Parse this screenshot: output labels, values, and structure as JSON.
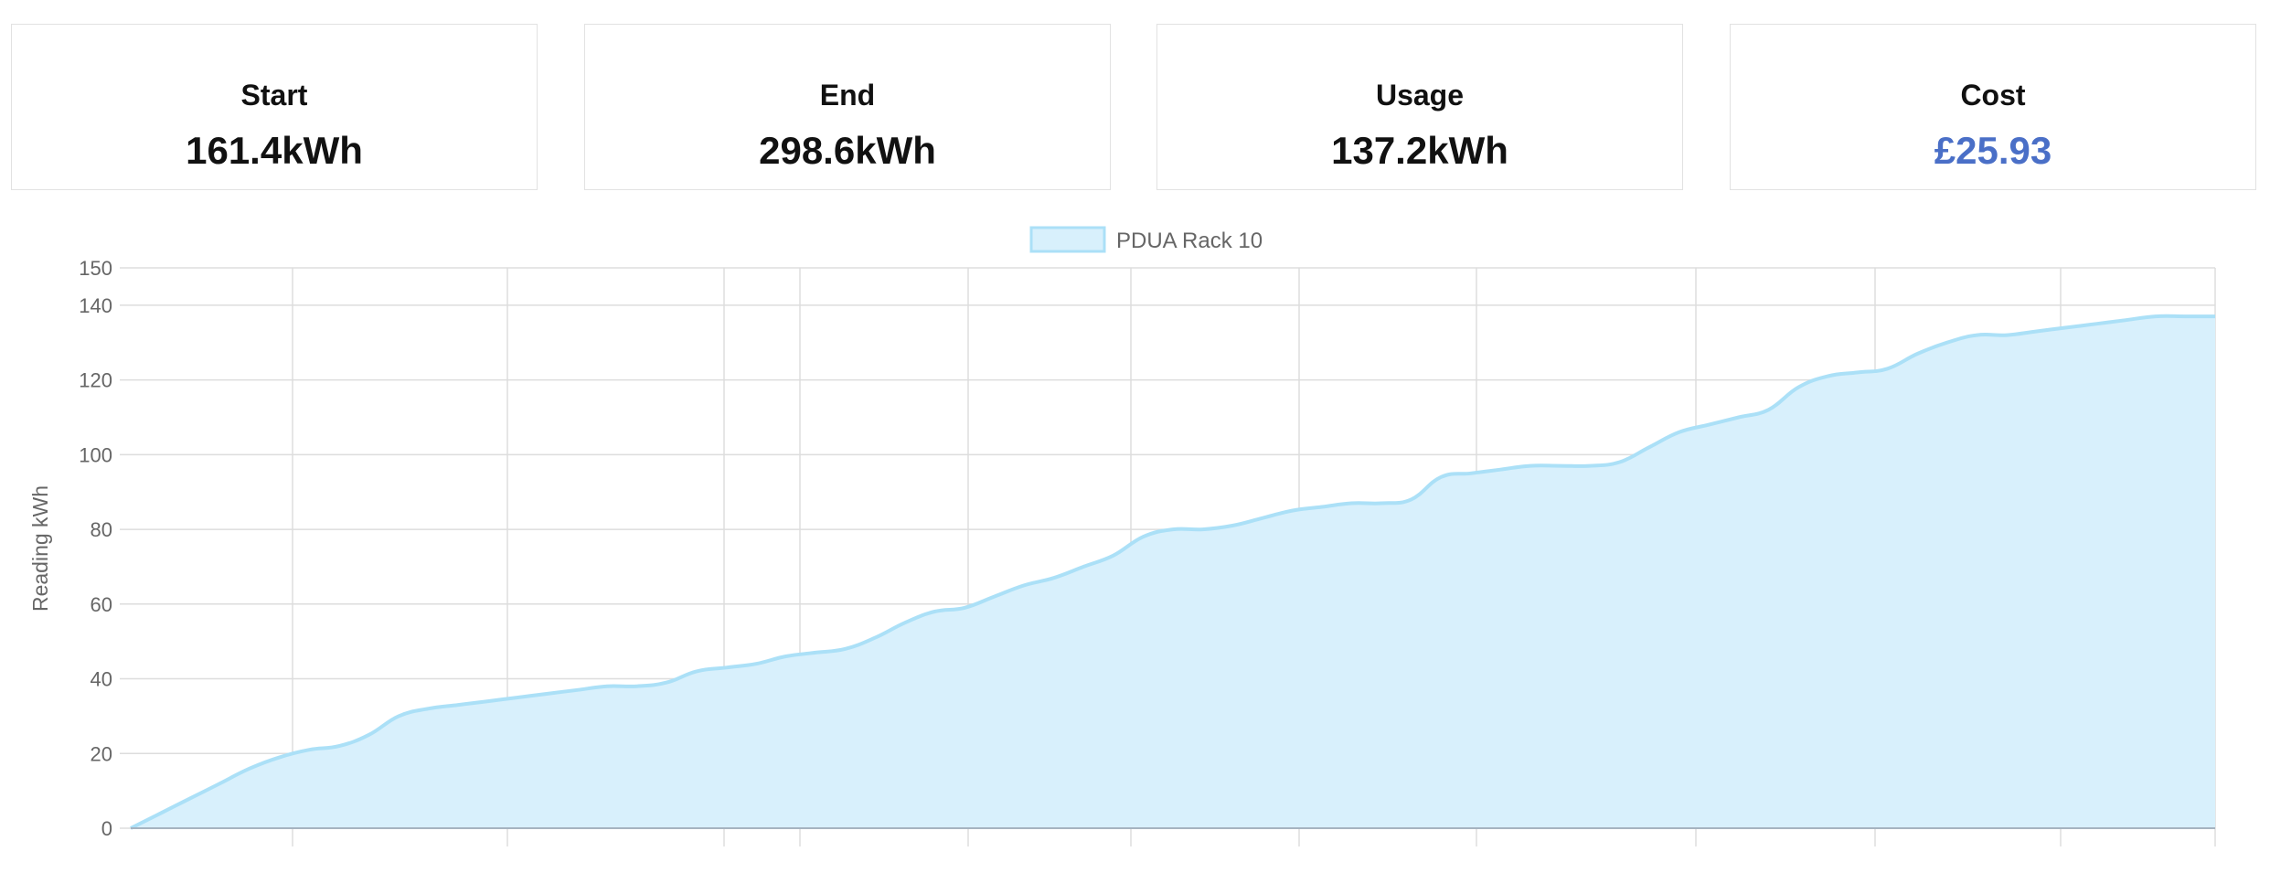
{
  "cards": [
    {
      "title": "Start",
      "value": "161.4kWh",
      "accent": false
    },
    {
      "title": "End",
      "value": "298.6kWh",
      "accent": false
    },
    {
      "title": "Usage",
      "value": "137.2kWh",
      "accent": false
    },
    {
      "title": "Cost",
      "value": "£25.93",
      "accent": true
    }
  ],
  "colors": {
    "area_fill": "#d8f0fc",
    "area_line": "#abe0f7",
    "accent": "#4a6fc7",
    "grid": "#dddddd"
  },
  "chart_data": {
    "type": "area",
    "title": "",
    "xlabel": "",
    "ylabel": "Reading kWh",
    "ylim": [
      0,
      150
    ],
    "yticks": [
      0,
      20,
      40,
      60,
      80,
      100,
      120,
      140,
      150
    ],
    "grid": true,
    "legend_position": "top-center",
    "series": [
      {
        "name": "PDUA Rack 10",
        "x": [
          0,
          1,
          2,
          3,
          4,
          5,
          6,
          7,
          8,
          9,
          10,
          11,
          12,
          13,
          14,
          15,
          16,
          17,
          18,
          19,
          20,
          21,
          22,
          23,
          24,
          25,
          26,
          27,
          28,
          29,
          30,
          31,
          32,
          33,
          34,
          35,
          36,
          37,
          38,
          39,
          40,
          41,
          42,
          43,
          44,
          45,
          46,
          47,
          48,
          49,
          50,
          51,
          52,
          53,
          54,
          55,
          56,
          57,
          58,
          59,
          60,
          61,
          62,
          63,
          64,
          65,
          66,
          67,
          68,
          69,
          70
        ],
        "values": [
          0,
          4,
          8,
          12,
          16,
          19,
          21,
          22,
          25,
          30,
          32,
          33,
          34,
          35,
          36,
          37,
          38,
          38,
          39,
          42,
          43,
          44,
          46,
          47,
          48,
          51,
          55,
          58,
          59,
          62,
          65,
          67,
          70,
          73,
          78,
          80,
          80,
          81,
          83,
          85,
          86,
          87,
          87,
          88,
          94,
          95,
          96,
          97,
          97,
          97,
          98,
          102,
          106,
          108,
          110,
          112,
          118,
          121,
          122,
          123,
          127,
          130,
          132,
          132,
          133,
          134,
          135,
          136,
          137,
          137,
          137
        ]
      }
    ]
  }
}
